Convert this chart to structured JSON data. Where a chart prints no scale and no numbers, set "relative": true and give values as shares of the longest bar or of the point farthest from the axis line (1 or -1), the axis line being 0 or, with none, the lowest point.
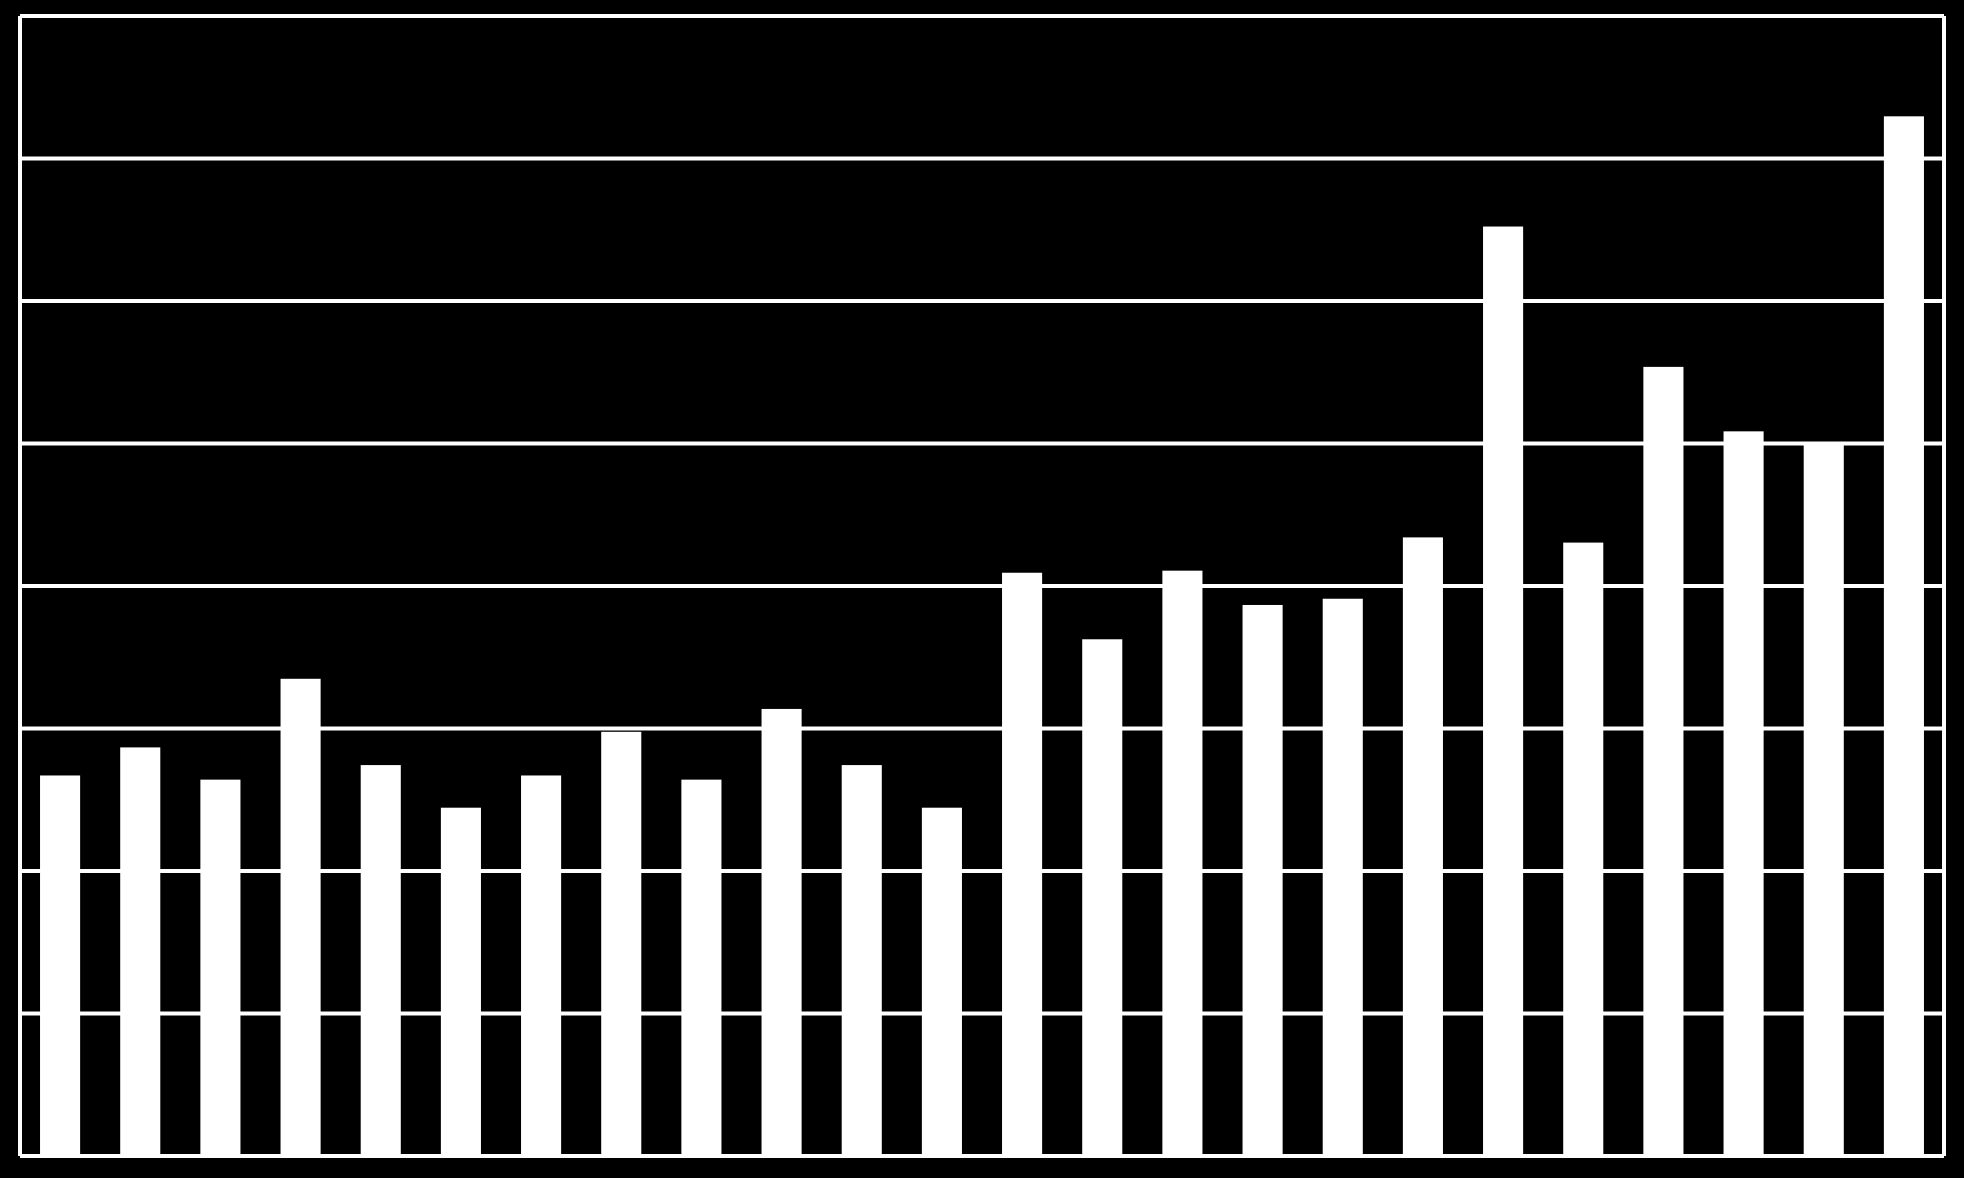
{
  "chart_data": {
    "type": "bar",
    "relative": true,
    "grid": true,
    "color": "#ffffff",
    "categories": [
      null,
      null,
      null,
      null,
      null,
      null,
      null,
      null,
      null,
      null,
      null,
      null,
      null,
      null,
      null,
      null,
      null,
      null,
      null,
      null,
      null,
      null,
      null,
      null
    ],
    "values": [
      0.366,
      0.393,
      0.362,
      0.459,
      0.376,
      0.335,
      0.366,
      0.408,
      0.362,
      0.43,
      0.376,
      0.335,
      0.561,
      0.497,
      0.563,
      0.53,
      0.536,
      0.595,
      0.894,
      0.59,
      0.759,
      0.697,
      0.686,
      1
    ]
  }
}
